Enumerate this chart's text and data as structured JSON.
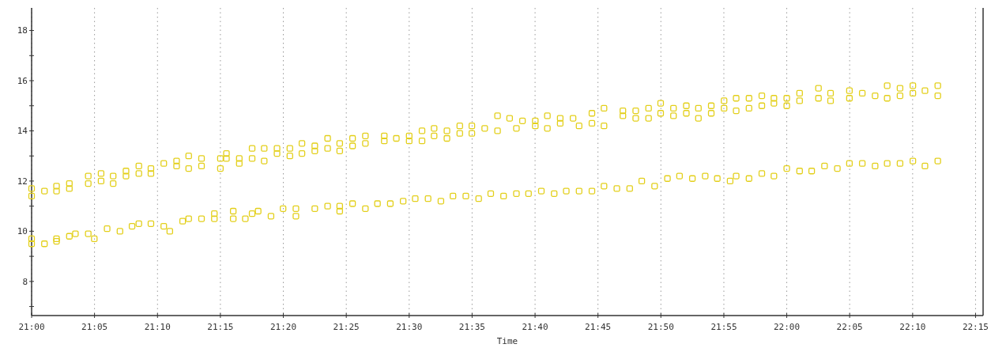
{
  "chart_data": {
    "type": "scatter",
    "xlabel": "Time",
    "xlim": [
      21,
      22.26
    ],
    "ylim": [
      6.64,
      18.9
    ],
    "xticks": [
      {
        "value": 21,
        "label": "21:00"
      },
      {
        "value": 21.0833,
        "label": "21:05"
      },
      {
        "value": 21.1667,
        "label": "21:10"
      },
      {
        "value": 21.25,
        "label": "21:15"
      },
      {
        "value": 21.3333,
        "label": "21:20"
      },
      {
        "value": 21.4167,
        "label": "21:25"
      },
      {
        "value": 21.5,
        "label": "21:30"
      },
      {
        "value": 21.5833,
        "label": "21:35"
      },
      {
        "value": 21.6667,
        "label": "21:40"
      },
      {
        "value": 21.75,
        "label": "21:45"
      },
      {
        "value": 21.8333,
        "label": "21:50"
      },
      {
        "value": 21.9167,
        "label": "21:55"
      },
      {
        "value": 22,
        "label": "22:00"
      },
      {
        "value": 22.0833,
        "label": "22:05"
      },
      {
        "value": 22.1667,
        "label": "22:10"
      },
      {
        "value": 22.25,
        "label": "22:15"
      }
    ],
    "yticks": [
      {
        "value": 7,
        "label": null
      },
      8,
      {
        "value": 9,
        "label": null
      },
      10,
      {
        "value": 11,
        "label": null
      },
      12,
      {
        "value": 13,
        "label": null
      },
      14,
      {
        "value": 15,
        "label": null
      },
      16,
      {
        "value": 17,
        "label": null
      },
      18
    ],
    "grid": "x",
    "marker": "square",
    "series": [
      {
        "color": "#e3cf1a",
        "x": [
          21.0,
          21.0,
          21.017,
          21.033,
          21.033,
          21.05,
          21.05,
          21.075,
          21.075,
          21.092,
          21.092,
          21.108,
          21.108,
          21.125,
          21.125,
          21.142,
          21.142,
          21.158,
          21.158,
          21.175,
          21.192,
          21.192,
          21.208,
          21.208,
          21.225,
          21.225,
          21.25,
          21.25,
          21.258,
          21.258,
          21.275,
          21.275,
          21.292,
          21.292,
          21.308,
          21.308,
          21.325,
          21.325,
          21.342,
          21.342,
          21.358,
          21.358,
          21.375,
          21.375,
          21.392,
          21.392,
          21.408,
          21.408,
          21.425,
          21.425,
          21.442,
          21.442,
          21.467,
          21.467,
          21.483,
          21.5,
          21.5,
          21.517,
          21.517,
          21.533,
          21.533,
          21.55,
          21.55,
          21.567,
          21.567,
          21.583,
          21.583,
          21.6,
          21.617,
          21.617,
          21.633,
          21.642,
          21.65,
          21.667,
          21.667,
          21.683,
          21.683,
          21.7,
          21.7,
          21.717,
          21.725,
          21.742,
          21.742,
          21.758,
          21.758,
          21.783,
          21.783,
          21.8,
          21.8,
          21.817,
          21.817,
          21.833,
          21.833,
          21.85,
          21.85,
          21.867,
          21.867,
          21.883,
          21.883,
          21.9,
          21.9,
          21.917,
          21.917,
          21.933,
          21.933,
          21.95,
          21.95,
          21.967,
          21.967,
          21.983,
          21.983,
          22.0,
          22.0,
          22.017,
          22.017,
          22.042,
          22.042,
          22.058,
          22.058,
          22.083,
          22.083,
          22.1,
          22.117,
          22.133,
          22.133,
          22.15,
          22.15,
          22.167,
          22.167,
          22.183,
          22.2,
          22.2
        ],
        "values": [
          11.4,
          11.7,
          11.6,
          11.8,
          11.6,
          11.9,
          11.7,
          12.2,
          11.9,
          12.3,
          12.0,
          12.2,
          11.9,
          12.4,
          12.2,
          12.6,
          12.3,
          12.5,
          12.3,
          12.7,
          12.8,
          12.6,
          13.0,
          12.5,
          12.9,
          12.6,
          12.9,
          12.5,
          13.1,
          12.9,
          12.9,
          12.7,
          13.3,
          12.9,
          13.3,
          12.8,
          13.3,
          13.1,
          13.3,
          13.0,
          13.5,
          13.1,
          13.4,
          13.2,
          13.7,
          13.3,
          13.5,
          13.2,
          13.7,
          13.4,
          13.8,
          13.5,
          13.8,
          13.6,
          13.7,
          13.8,
          13.6,
          14.0,
          13.6,
          14.1,
          13.8,
          14.0,
          13.7,
          14.2,
          13.9,
          14.2,
          13.9,
          14.1,
          14.6,
          14.0,
          14.5,
          14.1,
          14.4,
          14.4,
          14.2,
          14.6,
          14.1,
          14.5,
          14.3,
          14.5,
          14.2,
          14.7,
          14.3,
          14.9,
          14.2,
          14.8,
          14.6,
          14.8,
          14.5,
          14.9,
          14.5,
          15.1,
          14.7,
          14.9,
          14.6,
          15.0,
          14.7,
          14.9,
          14.5,
          15.0,
          14.7,
          15.2,
          14.9,
          15.3,
          14.8,
          15.3,
          14.9,
          15.4,
          15.0,
          15.3,
          15.1,
          15.3,
          15.0,
          15.5,
          15.2,
          15.7,
          15.3,
          15.5,
          15.2,
          15.6,
          15.3,
          15.5,
          15.4,
          15.8,
          15.3,
          15.7,
          15.4,
          15.8,
          15.5,
          15.6,
          15.8,
          15.4
        ]
      },
      {
        "color": "#e3cf1a",
        "x": [
          21.0,
          21.0,
          21.017,
          21.033,
          21.033,
          21.05,
          21.058,
          21.075,
          21.083,
          21.1,
          21.117,
          21.133,
          21.142,
          21.158,
          21.175,
          21.183,
          21.2,
          21.208,
          21.225,
          21.242,
          21.242,
          21.267,
          21.267,
          21.283,
          21.292,
          21.3,
          21.317,
          21.333,
          21.35,
          21.35,
          21.375,
          21.392,
          21.408,
          21.408,
          21.425,
          21.442,
          21.458,
          21.475,
          21.492,
          21.508,
          21.525,
          21.542,
          21.558,
          21.575,
          21.592,
          21.608,
          21.625,
          21.642,
          21.658,
          21.675,
          21.692,
          21.708,
          21.725,
          21.742,
          21.758,
          21.775,
          21.792,
          21.808,
          21.825,
          21.842,
          21.858,
          21.875,
          21.892,
          21.908,
          21.925,
          21.933,
          21.95,
          21.967,
          21.983,
          22.0,
          22.017,
          22.033,
          22.05,
          22.067,
          22.083,
          22.1,
          22.117,
          22.133,
          22.15,
          22.167,
          22.183,
          22.2
        ],
        "values": [
          9.5,
          9.7,
          9.5,
          9.6,
          9.7,
          9.8,
          9.9,
          9.9,
          9.7,
          10.1,
          10.0,
          10.2,
          10.3,
          10.3,
          10.2,
          10.0,
          10.4,
          10.5,
          10.5,
          10.7,
          10.5,
          10.8,
          10.5,
          10.5,
          10.7,
          10.8,
          10.6,
          10.9,
          10.9,
          10.6,
          10.9,
          11.0,
          11.0,
          10.8,
          11.1,
          10.9,
          11.1,
          11.1,
          11.2,
          11.3,
          11.3,
          11.2,
          11.4,
          11.4,
          11.3,
          11.5,
          11.4,
          11.5,
          11.5,
          11.6,
          11.5,
          11.6,
          11.6,
          11.6,
          11.8,
          11.7,
          11.7,
          12.0,
          11.8,
          12.1,
          12.2,
          12.1,
          12.2,
          12.1,
          12.0,
          12.2,
          12.1,
          12.3,
          12.2,
          12.5,
          12.4,
          12.4,
          12.6,
          12.5,
          12.7,
          12.7,
          12.6,
          12.7,
          12.7,
          12.8,
          12.6,
          12.8
        ]
      }
    ]
  }
}
